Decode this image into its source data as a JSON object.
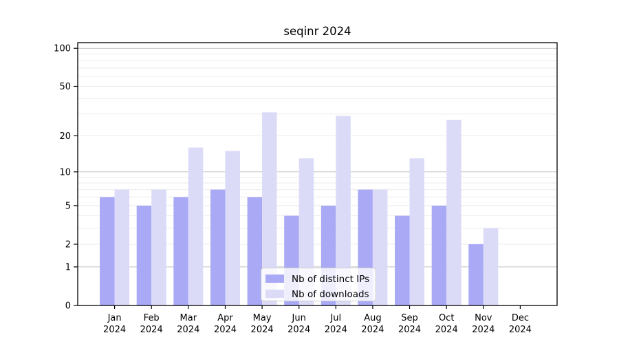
{
  "window": {
    "title": "seqinr 2024"
  },
  "colors": {
    "distinct_ips": "#a9a9f6",
    "downloads": "#dbdbf8",
    "grid_major": "#c3c3c3",
    "grid_minor": "#ebebeb",
    "axis": "#000000",
    "legend_bg": "rgba(255,255,255,0.8)",
    "legend_border": "#cccccc",
    "background": "#ffffff"
  },
  "chart_data": {
    "type": "bar",
    "title": "seqinr 2024",
    "xlabel": "",
    "ylabel": "",
    "yscale": "log1p",
    "ylim": [
      0,
      112
    ],
    "grid": true,
    "legend_position": "bottom-center",
    "categories": [
      "Jan 2024",
      "Feb 2024",
      "Mar 2024",
      "Apr 2024",
      "May 2024",
      "Jun 2024",
      "Jul 2024",
      "Aug 2024",
      "Sep 2024",
      "Oct 2024",
      "Nov 2024",
      "Dec 2024"
    ],
    "series": [
      {
        "name": "Nb of distinct IPs",
        "values": [
          6,
          5,
          6,
          7,
          6,
          4,
          5,
          7,
          4,
          5,
          2,
          0
        ]
      },
      {
        "name": "Nb of downloads",
        "values": [
          7,
          7,
          16,
          15,
          31,
          13,
          29,
          7,
          13,
          27,
          3,
          0
        ]
      }
    ],
    "y_tick_labels": [
      0,
      1,
      2,
      5,
      10,
      20,
      50,
      100
    ],
    "y_gridlines_major": [
      1,
      10,
      100
    ],
    "y_gridlines_minor": [
      2,
      3,
      4,
      5,
      6,
      7,
      8,
      9,
      20,
      30,
      40,
      50,
      60,
      70,
      80,
      90
    ]
  }
}
